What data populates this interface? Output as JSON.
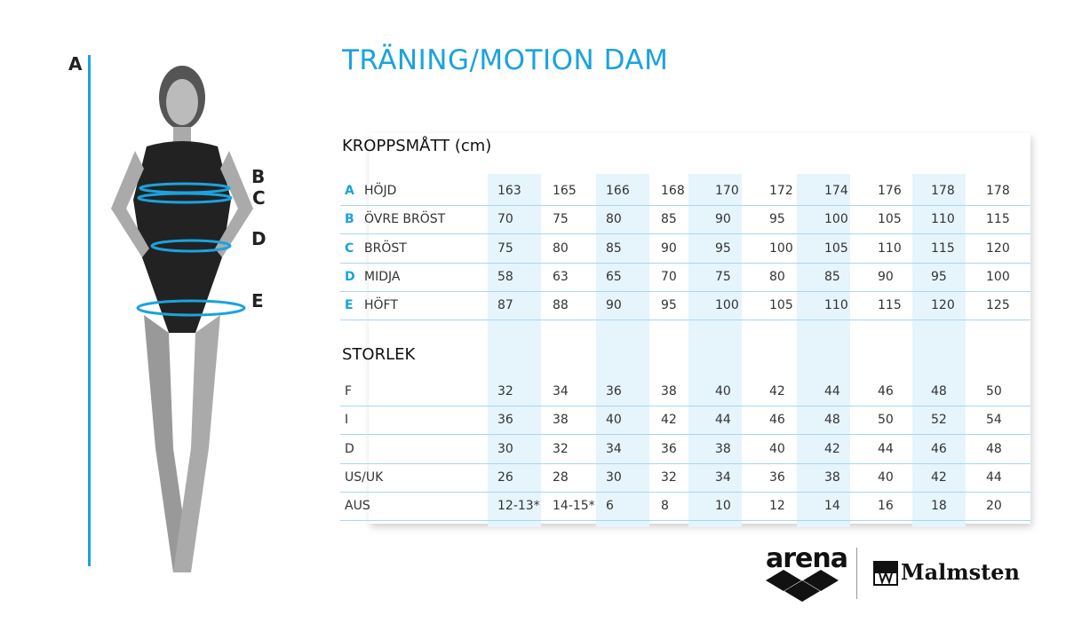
{
  "title": "TRÄNING/MOTION DAM",
  "body_section": {
    "heading": "KROPPSMÅTT (cm)",
    "rows": [
      {
        "key": "A",
        "label": "HÖJD",
        "values": [
          "163",
          "165",
          "166",
          "168",
          "170",
          "172",
          "174",
          "176",
          "178",
          "178"
        ]
      },
      {
        "key": "B",
        "label": "ÖVRE BRÖST",
        "values": [
          "70",
          "75",
          "80",
          "85",
          "90",
          "95",
          "100",
          "105",
          "110",
          "115"
        ]
      },
      {
        "key": "C",
        "label": "BRÖST",
        "values": [
          "75",
          "80",
          "85",
          "90",
          "95",
          "100",
          "105",
          "110",
          "115",
          "120"
        ]
      },
      {
        "key": "D",
        "label": "MIDJA",
        "values": [
          "58",
          "63",
          "65",
          "70",
          "75",
          "80",
          "85",
          "90",
          "95",
          "100"
        ]
      },
      {
        "key": "E",
        "label": "HÖFT",
        "values": [
          "87",
          "88",
          "90",
          "95",
          "100",
          "105",
          "110",
          "115",
          "120",
          "125"
        ]
      }
    ]
  },
  "size_section": {
    "heading": "STORLEK",
    "rows": [
      {
        "label": "F",
        "values": [
          "32",
          "34",
          "36",
          "38",
          "40",
          "42",
          "44",
          "46",
          "48",
          "50"
        ]
      },
      {
        "label": "I",
        "values": [
          "36",
          "38",
          "40",
          "42",
          "44",
          "46",
          "48",
          "50",
          "52",
          "54"
        ]
      },
      {
        "label": "D",
        "values": [
          "30",
          "32",
          "34",
          "36",
          "38",
          "40",
          "42",
          "44",
          "46",
          "48"
        ]
      },
      {
        "label": "US/UK",
        "values": [
          "26",
          "28",
          "30",
          "32",
          "34",
          "36",
          "38",
          "40",
          "42",
          "44"
        ]
      },
      {
        "label": "AUS",
        "values": [
          "12-13*",
          "14-15*",
          "6",
          "8",
          "10",
          "12",
          "14",
          "16",
          "18",
          "20"
        ]
      }
    ]
  },
  "figure_letters": [
    "A",
    "B",
    "C",
    "D",
    "E"
  ],
  "logos": {
    "arena": "arena",
    "malmsten": "Malmsten"
  },
  "colors": {
    "accent": "#1aa3dd",
    "highlight": "#e6f4fc"
  }
}
